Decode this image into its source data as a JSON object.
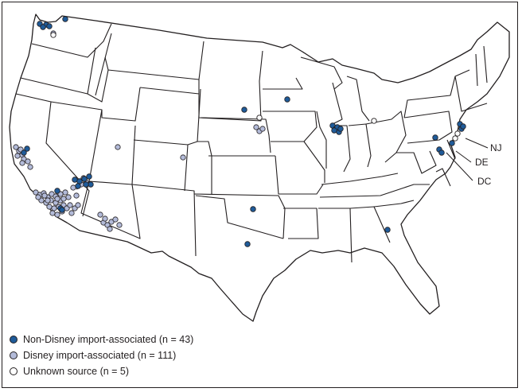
{
  "colors": {
    "non_disney": "#1f5b99",
    "disney": "#b3bbd9",
    "unknown": "#ffffff",
    "outline": "#231f20"
  },
  "callouts": [
    "NJ",
    "DE",
    "DC"
  ],
  "legend": [
    {
      "key": "non_disney",
      "label": "Non-Disney import-associated (n = 43)"
    },
    {
      "key": "disney",
      "label": "Disney import-associated (n = 111)"
    },
    {
      "key": "unknown",
      "label": "Unknown source (n = 5)"
    }
  ]
}
